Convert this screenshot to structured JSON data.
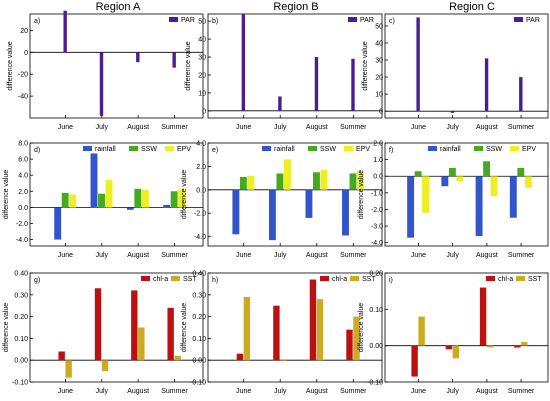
{
  "region_titles": [
    "Region A",
    "Region B",
    "Region C"
  ],
  "chart_data": [
    {
      "type": "bar",
      "label": "a)",
      "ylabel": "difference value",
      "categories": [
        "June",
        "July",
        "August",
        "Summer"
      ],
      "ylim": [
        -60,
        35
      ],
      "yticks": [
        20,
        0,
        -20,
        -40
      ],
      "series": [
        {
          "name": "PAR",
          "color": "#4b1d8f",
          "values": [
            38,
            -58,
            -9,
            -14
          ]
        }
      ]
    },
    {
      "type": "bar",
      "label": "b)",
      "ylabel": "difference value",
      "categories": [
        "June",
        "July",
        "August",
        "Summer"
      ],
      "ylim": [
        -4,
        54
      ],
      "yticks": [
        50,
        40,
        30,
        20,
        10,
        0
      ],
      "series": [
        {
          "name": "PAR",
          "color": "#4b1d8f",
          "values": [
            54,
            8,
            30,
            29
          ]
        }
      ]
    },
    {
      "type": "bar",
      "label": "c)",
      "ylabel": "difference value",
      "categories": [
        "June",
        "July",
        "August",
        "Summer"
      ],
      "ylim": [
        -4,
        57
      ],
      "yticks": [
        50,
        40,
        30,
        20,
        10,
        0
      ],
      "series": [
        {
          "name": "PAR",
          "color": "#4b1d8f",
          "values": [
            55,
            -1,
            31,
            20
          ]
        }
      ]
    },
    {
      "type": "bar",
      "label": "d)",
      "ylabel": "difference value",
      "categories": [
        "June",
        "July",
        "August",
        "Summer"
      ],
      "ylim": [
        -4.8,
        8
      ],
      "yticks": [
        8.0,
        6.0,
        4.0,
        2.0,
        0.0,
        -2.0,
        -4.0
      ],
      "series": [
        {
          "name": "rainfall",
          "color": "#3355cc",
          "values": [
            -4.0,
            6.7,
            -0.3,
            0.3
          ]
        },
        {
          "name": "SSW",
          "color": "#44aa22",
          "values": [
            1.8,
            1.7,
            2.3,
            2.0
          ]
        },
        {
          "name": "EPV",
          "color": "#eeee22",
          "values": [
            1.6,
            3.4,
            2.2,
            2.2
          ]
        }
      ]
    },
    {
      "type": "bar",
      "label": "e)",
      "ylabel": "difference value",
      "categories": [
        "June",
        "July",
        "August",
        "Summer"
      ],
      "ylim": [
        -4.8,
        4
      ],
      "yticks": [
        4.0,
        2.0,
        0.0,
        -2.0,
        -4.0
      ],
      "series": [
        {
          "name": "rainfall",
          "color": "#3355cc",
          "values": [
            -3.8,
            -4.3,
            -2.4,
            -3.9
          ]
        },
        {
          "name": "SSW",
          "color": "#44aa22",
          "values": [
            1.1,
            1.4,
            1.5,
            1.4
          ]
        },
        {
          "name": "EPV",
          "color": "#eeee22",
          "values": [
            1.2,
            2.6,
            1.7,
            1.6
          ]
        }
      ]
    },
    {
      "type": "bar",
      "label": "f)",
      "ylabel": "difference value",
      "categories": [
        "June",
        "July",
        "August",
        "Summer"
      ],
      "ylim": [
        -4.2,
        2
      ],
      "yticks": [
        2.0,
        1.0,
        0.0,
        -1.0,
        -2.0,
        -3.0,
        -4.0
      ],
      "series": [
        {
          "name": "rainfall",
          "color": "#3355cc",
          "values": [
            -3.7,
            -0.6,
            -3.6,
            -2.5
          ]
        },
        {
          "name": "SSW",
          "color": "#44aa22",
          "values": [
            0.3,
            0.5,
            0.9,
            0.5
          ]
        },
        {
          "name": "EPV",
          "color": "#eeee22",
          "values": [
            -2.2,
            -0.3,
            -1.2,
            -0.7
          ]
        }
      ]
    },
    {
      "type": "bar",
      "label": "g)",
      "ylabel": "difference value",
      "categories": [
        "June",
        "July",
        "August",
        "Summer"
      ],
      "ylim": [
        -0.1,
        0.4
      ],
      "yticks": [
        0.4,
        0.3,
        0.2,
        0.1,
        0.0,
        -0.1
      ],
      "series": [
        {
          "name": "chl-a",
          "color": "#bb1111",
          "values": [
            0.04,
            0.33,
            0.32,
            0.24
          ]
        },
        {
          "name": "SST",
          "color": "#ccaa22",
          "values": [
            -0.08,
            -0.05,
            0.15,
            0.02
          ]
        }
      ]
    },
    {
      "type": "bar",
      "label": "h)",
      "ylabel": "difference value",
      "categories": [
        "June",
        "July",
        "August",
        "Summer"
      ],
      "ylim": [
        -0.1,
        0.4
      ],
      "yticks": [
        0.4,
        0.3,
        0.2,
        0.1,
        0.0,
        -0.1
      ],
      "series": [
        {
          "name": "chl-a",
          "color": "#bb1111",
          "values": [
            0.03,
            0.25,
            0.37,
            0.14
          ]
        },
        {
          "name": "SST",
          "color": "#ccaa22",
          "values": [
            0.29,
            0.0,
            0.28,
            0.2
          ]
        }
      ]
    },
    {
      "type": "bar",
      "label": "i)",
      "ylabel": "difference value",
      "categories": [
        "June",
        "July",
        "August",
        "Summer"
      ],
      "ylim": [
        -0.1,
        0.2
      ],
      "yticks": [
        0.2,
        0.1,
        0.0,
        -0.1
      ],
      "series": [
        {
          "name": "chl-a",
          "color": "#bb1111",
          "values": [
            -0.085,
            -0.01,
            0.16,
            -0.005
          ]
        },
        {
          "name": "SST",
          "color": "#ccaa22",
          "values": [
            0.08,
            -0.035,
            -0.005,
            0.01
          ]
        }
      ]
    }
  ]
}
